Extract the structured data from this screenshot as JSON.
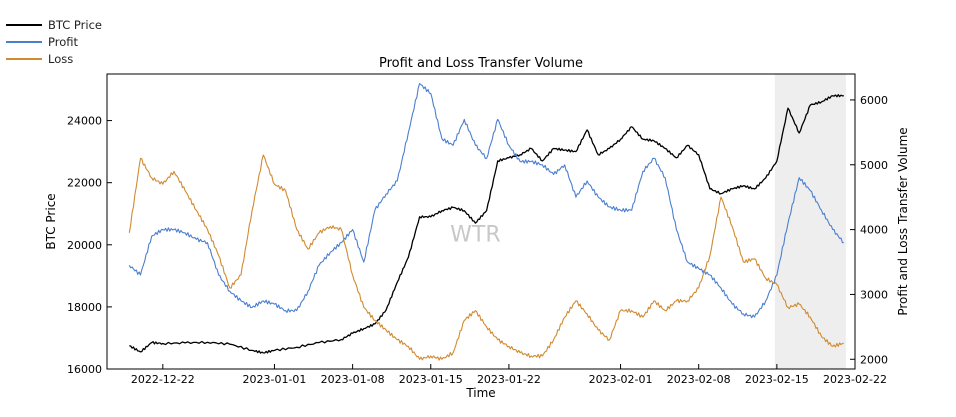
{
  "chart_data": {
    "type": "line",
    "title": "Profit and Loss Transfer Volume",
    "xlabel": "Time",
    "ylabel_left": "BTC Price",
    "ylabel_right": "Profit and Loss Transfer Volume",
    "watermark": "WTR",
    "x_range": [
      "2022-12-17",
      "2023-02-22"
    ],
    "x_ticks": [
      "2022-12-22",
      "2023-01-01",
      "2023-01-08",
      "2023-01-15",
      "2023-01-22",
      "2023-02-01",
      "2023-02-08",
      "2023-02-15",
      "2023-02-22"
    ],
    "ylim_left": [
      16000,
      25500
    ],
    "ylim_right": [
      1850,
      6400
    ],
    "yticks_left": [
      16000,
      18000,
      20000,
      22000,
      24000
    ],
    "yticks_right": [
      2000,
      3000,
      4000,
      5000,
      6000
    ],
    "shaded_region": [
      "2023-02-15",
      "2023-02-21"
    ],
    "legend": {
      "placement": "top-left"
    },
    "series": [
      {
        "name": "BTC Price",
        "axis": "left",
        "color": "#000000",
        "points": [
          [
            "2022-12-19",
            16750
          ],
          [
            "2022-12-20",
            16550
          ],
          [
            "2022-12-21",
            16850
          ],
          [
            "2022-12-22",
            16820
          ],
          [
            "2022-12-24",
            16840
          ],
          [
            "2022-12-26",
            16860
          ],
          [
            "2022-12-28",
            16800
          ],
          [
            "2022-12-30",
            16600
          ],
          [
            "2022-12-31",
            16520
          ],
          [
            "2023-01-01",
            16600
          ],
          [
            "2023-01-03",
            16700
          ],
          [
            "2023-01-05",
            16850
          ],
          [
            "2023-01-07",
            16950
          ],
          [
            "2023-01-08",
            17150
          ],
          [
            "2023-01-09",
            17300
          ],
          [
            "2023-01-10",
            17450
          ],
          [
            "2023-01-11",
            17900
          ],
          [
            "2023-01-12",
            18800
          ],
          [
            "2023-01-13",
            19600
          ],
          [
            "2023-01-14",
            20900
          ],
          [
            "2023-01-15",
            20900
          ],
          [
            "2023-01-16",
            21100
          ],
          [
            "2023-01-17",
            21200
          ],
          [
            "2023-01-18",
            21100
          ],
          [
            "2023-01-19",
            20700
          ],
          [
            "2023-01-20",
            21100
          ],
          [
            "2023-01-21",
            22700
          ],
          [
            "2023-01-22",
            22800
          ],
          [
            "2023-01-23",
            22900
          ],
          [
            "2023-01-24",
            23100
          ],
          [
            "2023-01-25",
            22700
          ],
          [
            "2023-01-26",
            23100
          ],
          [
            "2023-01-27",
            23050
          ],
          [
            "2023-01-28",
            23000
          ],
          [
            "2023-01-29",
            23700
          ],
          [
            "2023-01-30",
            22900
          ],
          [
            "2023-01-31",
            23100
          ],
          [
            "2023-02-01",
            23400
          ],
          [
            "2023-02-02",
            23800
          ],
          [
            "2023-02-03",
            23400
          ],
          [
            "2023-02-04",
            23350
          ],
          [
            "2023-02-05",
            23100
          ],
          [
            "2023-02-06",
            22800
          ],
          [
            "2023-02-07",
            23200
          ],
          [
            "2023-02-08",
            22900
          ],
          [
            "2023-02-09",
            21800
          ],
          [
            "2023-02-10",
            21650
          ],
          [
            "2023-02-11",
            21800
          ],
          [
            "2023-02-12",
            21900
          ],
          [
            "2023-02-13",
            21800
          ],
          [
            "2023-02-14",
            22150
          ],
          [
            "2023-02-15",
            22700
          ],
          [
            "2023-02-16",
            24400
          ],
          [
            "2023-02-17",
            23600
          ],
          [
            "2023-02-18",
            24500
          ],
          [
            "2023-02-19",
            24600
          ],
          [
            "2023-02-20",
            24800
          ],
          [
            "2023-02-21",
            24800
          ]
        ]
      },
      {
        "name": "Profit",
        "axis": "right",
        "color": "#4a7fcf",
        "points": [
          [
            "2022-12-19",
            3450
          ],
          [
            "2022-12-20",
            3300
          ],
          [
            "2022-12-21",
            3900
          ],
          [
            "2022-12-22",
            4000
          ],
          [
            "2022-12-23",
            4000
          ],
          [
            "2022-12-24",
            3950
          ],
          [
            "2022-12-25",
            3850
          ],
          [
            "2022-12-26",
            3800
          ],
          [
            "2022-12-27",
            3300
          ],
          [
            "2022-12-28",
            3050
          ],
          [
            "2022-12-29",
            2900
          ],
          [
            "2022-12-30",
            2800
          ],
          [
            "2022-12-31",
            2900
          ],
          [
            "2023-01-01",
            2850
          ],
          [
            "2023-01-02",
            2750
          ],
          [
            "2023-01-03",
            2750
          ],
          [
            "2023-01-04",
            3050
          ],
          [
            "2023-01-05",
            3450
          ],
          [
            "2023-01-06",
            3650
          ],
          [
            "2023-01-07",
            3800
          ],
          [
            "2023-01-08",
            4000
          ],
          [
            "2023-01-09",
            3500
          ],
          [
            "2023-01-10",
            4300
          ],
          [
            "2023-01-11",
            4550
          ],
          [
            "2023-01-12",
            4750
          ],
          [
            "2023-01-13",
            5500
          ],
          [
            "2023-01-14",
            6250
          ],
          [
            "2023-01-15",
            6100
          ],
          [
            "2023-01-16",
            5400
          ],
          [
            "2023-01-17",
            5300
          ],
          [
            "2023-01-18",
            5700
          ],
          [
            "2023-01-19",
            5300
          ],
          [
            "2023-01-20",
            5100
          ],
          [
            "2023-01-21",
            5700
          ],
          [
            "2023-01-22",
            5300
          ],
          [
            "2023-01-23",
            5050
          ],
          [
            "2023-01-24",
            5050
          ],
          [
            "2023-01-25",
            5000
          ],
          [
            "2023-01-26",
            4850
          ],
          [
            "2023-01-27",
            5000
          ],
          [
            "2023-01-28",
            4500
          ],
          [
            "2023-01-29",
            4750
          ],
          [
            "2023-01-30",
            4500
          ],
          [
            "2023-01-31",
            4350
          ],
          [
            "2023-02-01",
            4300
          ],
          [
            "2023-02-02",
            4300
          ],
          [
            "2023-02-03",
            4900
          ],
          [
            "2023-02-04",
            5100
          ],
          [
            "2023-02-05",
            4800
          ],
          [
            "2023-02-06",
            4000
          ],
          [
            "2023-02-07",
            3500
          ],
          [
            "2023-02-08",
            3400
          ],
          [
            "2023-02-09",
            3300
          ],
          [
            "2023-02-10",
            3100
          ],
          [
            "2023-02-11",
            2850
          ],
          [
            "2023-02-12",
            2700
          ],
          [
            "2023-02-13",
            2650
          ],
          [
            "2023-02-14",
            2900
          ],
          [
            "2023-02-15",
            3300
          ],
          [
            "2023-02-16",
            4100
          ],
          [
            "2023-02-17",
            4800
          ],
          [
            "2023-02-18",
            4600
          ],
          [
            "2023-02-19",
            4300
          ],
          [
            "2023-02-20",
            4000
          ],
          [
            "2023-02-21",
            3800
          ]
        ]
      },
      {
        "name": "Loss",
        "axis": "right",
        "color": "#d08a30",
        "points": [
          [
            "2022-12-19",
            3950
          ],
          [
            "2022-12-20",
            5100
          ],
          [
            "2022-12-21",
            4800
          ],
          [
            "2022-12-22",
            4700
          ],
          [
            "2022-12-23",
            4900
          ],
          [
            "2022-12-24",
            4600
          ],
          [
            "2022-12-25",
            4300
          ],
          [
            "2022-12-26",
            4000
          ],
          [
            "2022-12-27",
            3600
          ],
          [
            "2022-12-28",
            3100
          ],
          [
            "2022-12-29",
            3300
          ],
          [
            "2022-12-30",
            4300
          ],
          [
            "2022-12-31",
            5150
          ],
          [
            "2023-01-01",
            4700
          ],
          [
            "2023-01-02",
            4600
          ],
          [
            "2023-01-03",
            4000
          ],
          [
            "2023-01-04",
            3700
          ],
          [
            "2023-01-05",
            3950
          ],
          [
            "2023-01-06",
            4050
          ],
          [
            "2023-01-07",
            4000
          ],
          [
            "2023-01-08",
            3300
          ],
          [
            "2023-01-09",
            2800
          ],
          [
            "2023-01-10",
            2600
          ],
          [
            "2023-01-11",
            2450
          ],
          [
            "2023-01-12",
            2300
          ],
          [
            "2023-01-13",
            2200
          ],
          [
            "2023-01-14",
            2000
          ],
          [
            "2023-01-15",
            2050
          ],
          [
            "2023-01-16",
            2000
          ],
          [
            "2023-01-17",
            2100
          ],
          [
            "2023-01-18",
            2600
          ],
          [
            "2023-01-19",
            2750
          ],
          [
            "2023-01-20",
            2500
          ],
          [
            "2023-01-21",
            2300
          ],
          [
            "2023-01-22",
            2200
          ],
          [
            "2023-01-23",
            2100
          ],
          [
            "2023-01-24",
            2050
          ],
          [
            "2023-01-25",
            2050
          ],
          [
            "2023-01-26",
            2300
          ],
          [
            "2023-01-27",
            2650
          ],
          [
            "2023-01-28",
            2900
          ],
          [
            "2023-01-29",
            2700
          ],
          [
            "2023-01-30",
            2450
          ],
          [
            "2023-01-31",
            2300
          ],
          [
            "2023-02-01",
            2750
          ],
          [
            "2023-02-02",
            2750
          ],
          [
            "2023-02-03",
            2650
          ],
          [
            "2023-02-04",
            2900
          ],
          [
            "2023-02-05",
            2750
          ],
          [
            "2023-02-06",
            2900
          ],
          [
            "2023-02-07",
            2900
          ],
          [
            "2023-02-08",
            3100
          ],
          [
            "2023-02-09",
            3600
          ],
          [
            "2023-02-10",
            4500
          ],
          [
            "2023-02-11",
            4050
          ],
          [
            "2023-02-12",
            3500
          ],
          [
            "2023-02-13",
            3550
          ],
          [
            "2023-02-14",
            3250
          ],
          [
            "2023-02-15",
            3150
          ],
          [
            "2023-02-16",
            2800
          ],
          [
            "2023-02-17",
            2850
          ],
          [
            "2023-02-18",
            2650
          ],
          [
            "2023-02-19",
            2350
          ],
          [
            "2023-02-20",
            2200
          ],
          [
            "2023-02-21",
            2250
          ]
        ]
      }
    ]
  }
}
